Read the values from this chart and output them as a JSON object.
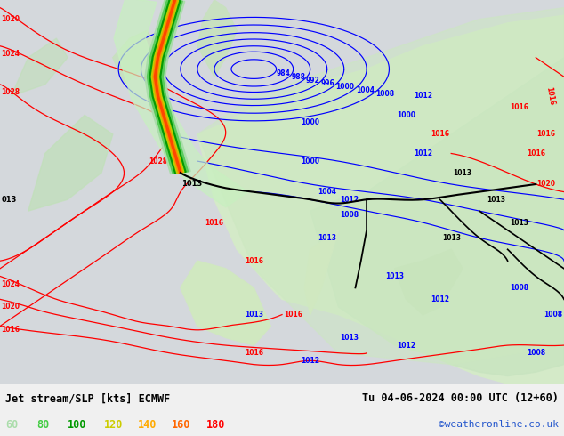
{
  "title_left": "Jet stream/SLP [kts] ECMWF",
  "title_right": "Tu 04-06-2024 00:00 UTC (12+60)",
  "credit": "©weatheronline.co.uk",
  "legend_values": [
    "60",
    "80",
    "100",
    "120",
    "140",
    "160",
    "180"
  ],
  "legend_colors": [
    "#aaddaa",
    "#44cc44",
    "#009900",
    "#cccc00",
    "#ffaa00",
    "#ff6600",
    "#ff0000"
  ],
  "figsize": [
    6.34,
    4.9
  ],
  "dpi": 100,
  "bg_land": "#d8ecd8",
  "bg_sea": "#d4d8dc",
  "bg_bottom": "#f0f0f0"
}
